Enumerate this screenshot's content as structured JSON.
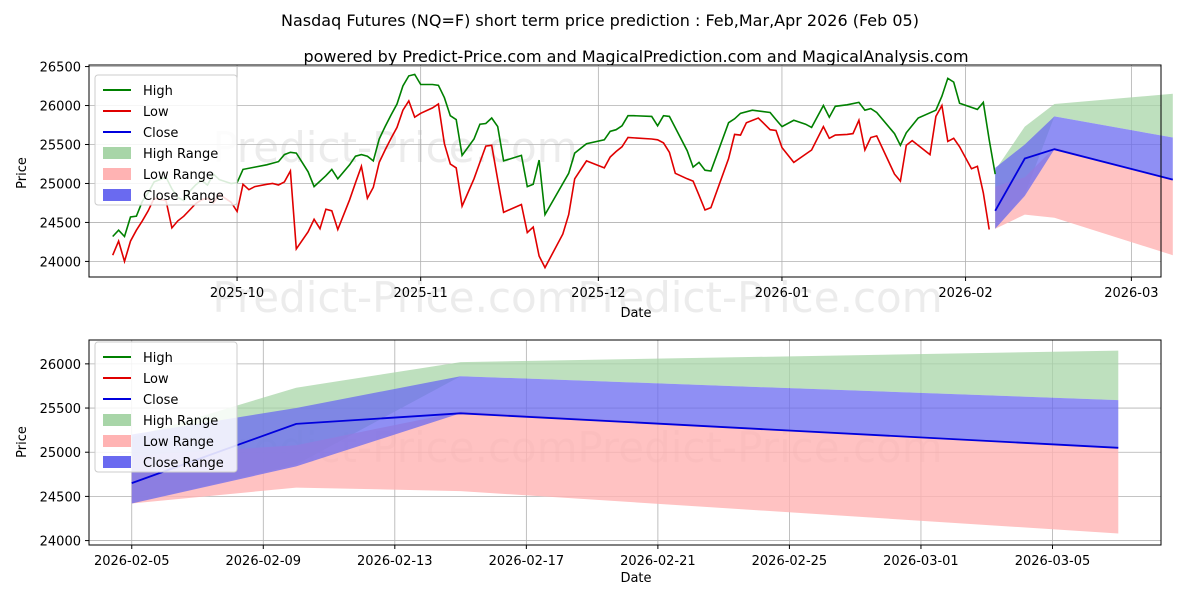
{
  "title": "Nasdaq Futures (NQ=F) short term price prediction : Feb,Mar,Apr 2026 (Feb 05)",
  "subtitle": "powered by Predict-Price.com and MagicalPrediction.com and MagicalAnalysis.com",
  "watermark": "Predict-Price.com",
  "colors": {
    "high": "#008000",
    "low": "#e00000",
    "close": "#0000dd",
    "high_range": "#a8d5a8",
    "low_range": "#ffb3b3",
    "close_range": "#6a6af0"
  },
  "chart_data": [
    {
      "type": "line",
      "name": "history",
      "xlabel": "Date",
      "ylabel": "Price",
      "grid": true,
      "legend_position": "top-left",
      "legend": [
        "High",
        "Low",
        "Close",
        "High Range",
        "Low Range",
        "Close Range"
      ],
      "x_day_range": [
        -25,
        156
      ],
      "ylim": [
        23800,
        26520
      ],
      "x_ticks": [
        {
          "day": 0,
          "label": "2025-10"
        },
        {
          "day": 31,
          "label": "2025-11"
        },
        {
          "day": 61,
          "label": "2025-12"
        },
        {
          "day": 92,
          "label": "2026-01"
        },
        {
          "day": 123,
          "label": "2026-02"
        },
        {
          "day": 151,
          "label": "2026-03"
        }
      ],
      "y_ticks": [
        24000,
        24500,
        25000,
        25500,
        26000,
        26500
      ],
      "series": [
        {
          "name": "High",
          "points": [
            [
              -21,
              24320
            ],
            [
              -20,
              24400
            ],
            [
              -19,
              24320
            ],
            [
              -18,
              24570
            ],
            [
              -17,
              24580
            ],
            [
              -16,
              24770
            ],
            [
              -15,
              24880
            ],
            [
              -14,
              25020
            ],
            [
              -12,
              25080
            ],
            [
              -11,
              24930
            ],
            [
              -10,
              24820
            ],
            [
              -9,
              24780
            ],
            [
              -8,
              24900
            ],
            [
              -7,
              24980
            ],
            [
              -6,
              25040
            ],
            [
              -5,
              24980
            ],
            [
              -4,
              25120
            ],
            [
              -3,
              25050
            ],
            [
              -1,
              25000
            ],
            [
              0,
              25010
            ],
            [
              1,
              25180
            ],
            [
              3,
              25210
            ],
            [
              5,
              25240
            ],
            [
              7,
              25280
            ],
            [
              8,
              25370
            ],
            [
              9,
              25400
            ],
            [
              10,
              25390
            ],
            [
              12,
              25150
            ],
            [
              13,
              24960
            ],
            [
              15,
              25100
            ],
            [
              16,
              25180
            ],
            [
              17,
              25060
            ],
            [
              19,
              25240
            ],
            [
              20,
              25350
            ],
            [
              21,
              25370
            ],
            [
              22,
              25350
            ],
            [
              23,
              25290
            ],
            [
              24,
              25570
            ],
            [
              25,
              25730
            ],
            [
              26,
              25880
            ],
            [
              27,
              26020
            ],
            [
              28,
              26250
            ],
            [
              29,
              26380
            ],
            [
              30,
              26400
            ],
            [
              31,
              26270
            ],
            [
              33,
              26270
            ],
            [
              34,
              26260
            ],
            [
              35,
              26100
            ],
            [
              36,
              25870
            ],
            [
              37,
              25820
            ],
            [
              38,
              25360
            ],
            [
              40,
              25570
            ],
            [
              41,
              25760
            ],
            [
              42,
              25770
            ],
            [
              43,
              25840
            ],
            [
              44,
              25730
            ],
            [
              45,
              25290
            ],
            [
              48,
              25360
            ],
            [
              49,
              24960
            ],
            [
              50,
              24990
            ],
            [
              51,
              25300
            ],
            [
              52,
              24600
            ],
            [
              56,
              25130
            ],
            [
              57,
              25390
            ],
            [
              59,
              25510
            ],
            [
              62,
              25560
            ],
            [
              63,
              25670
            ],
            [
              64,
              25690
            ],
            [
              65,
              25740
            ],
            [
              66,
              25870
            ],
            [
              67,
              25870
            ],
            [
              70,
              25860
            ],
            [
              71,
              25740
            ],
            [
              72,
              25870
            ],
            [
              73,
              25860
            ],
            [
              76,
              25420
            ],
            [
              77,
              25210
            ],
            [
              78,
              25270
            ],
            [
              79,
              25170
            ],
            [
              80,
              25160
            ],
            [
              83,
              25780
            ],
            [
              84,
              25830
            ],
            [
              85,
              25900
            ],
            [
              87,
              25940
            ],
            [
              90,
              25910
            ],
            [
              91,
              25820
            ],
            [
              92,
              25730
            ],
            [
              94,
              25810
            ],
            [
              96,
              25760
            ],
            [
              97,
              25720
            ],
            [
              99,
              26000
            ],
            [
              100,
              25850
            ],
            [
              101,
              25990
            ],
            [
              103,
              26010
            ],
            [
              105,
              26040
            ],
            [
              106,
              25940
            ],
            [
              107,
              25960
            ],
            [
              108,
              25910
            ],
            [
              111,
              25640
            ],
            [
              112,
              25490
            ],
            [
              113,
              25650
            ],
            [
              115,
              25840
            ],
            [
              118,
              25940
            ],
            [
              119,
              26120
            ],
            [
              120,
              26350
            ],
            [
              121,
              26300
            ],
            [
              122,
              26030
            ],
            [
              125,
              25950
            ],
            [
              126,
              26040
            ],
            [
              127,
              25560
            ],
            [
              128,
              25120
            ]
          ]
        },
        {
          "name": "Low",
          "points": [
            [
              -21,
              24080
            ],
            [
              -20,
              24260
            ],
            [
              -19,
              24000
            ],
            [
              -18,
              24260
            ],
            [
              -17,
              24400
            ],
            [
              -16,
              24520
            ],
            [
              -15,
              24650
            ],
            [
              -14,
              24810
            ],
            [
              -12,
              24780
            ],
            [
              -11,
              24430
            ],
            [
              -10,
              24520
            ],
            [
              -9,
              24580
            ],
            [
              -8,
              24660
            ],
            [
              -7,
              24740
            ],
            [
              -6,
              24790
            ],
            [
              -5,
              24810
            ],
            [
              -4,
              24750
            ],
            [
              -3,
              24860
            ],
            [
              -1,
              24760
            ],
            [
              0,
              24640
            ],
            [
              1,
              24990
            ],
            [
              2,
              24920
            ],
            [
              3,
              24960
            ],
            [
              5,
              24990
            ],
            [
              6,
              25000
            ],
            [
              7,
              24980
            ],
            [
              8,
              25020
            ],
            [
              9,
              25160
            ],
            [
              10,
              24160
            ],
            [
              12,
              24380
            ],
            [
              13,
              24540
            ],
            [
              14,
              24420
            ],
            [
              15,
              24670
            ],
            [
              16,
              24650
            ],
            [
              17,
              24410
            ],
            [
              19,
              24790
            ],
            [
              20,
              25010
            ],
            [
              21,
              25220
            ],
            [
              22,
              24810
            ],
            [
              23,
              24950
            ],
            [
              24,
              25270
            ],
            [
              25,
              25430
            ],
            [
              26,
              25580
            ],
            [
              27,
              25720
            ],
            [
              28,
              25940
            ],
            [
              29,
              26060
            ],
            [
              30,
              25850
            ],
            [
              31,
              25900
            ],
            [
              33,
              25970
            ],
            [
              34,
              26020
            ],
            [
              35,
              25510
            ],
            [
              36,
              25250
            ],
            [
              37,
              25200
            ],
            [
              38,
              24710
            ],
            [
              40,
              25060
            ],
            [
              41,
              25270
            ],
            [
              42,
              25480
            ],
            [
              43,
              25490
            ],
            [
              44,
              25050
            ],
            [
              45,
              24630
            ],
            [
              48,
              24730
            ],
            [
              49,
              24370
            ],
            [
              50,
              24440
            ],
            [
              51,
              24070
            ],
            [
              52,
              23920
            ],
            [
              55,
              24350
            ],
            [
              56,
              24600
            ],
            [
              57,
              25060
            ],
            [
              59,
              25290
            ],
            [
              62,
              25200
            ],
            [
              63,
              25340
            ],
            [
              64,
              25410
            ],
            [
              65,
              25470
            ],
            [
              66,
              25590
            ],
            [
              70,
              25570
            ],
            [
              71,
              25560
            ],
            [
              72,
              25520
            ],
            [
              73,
              25400
            ],
            [
              74,
              25130
            ],
            [
              76,
              25060
            ],
            [
              77,
              25030
            ],
            [
              78,
              24850
            ],
            [
              79,
              24660
            ],
            [
              80,
              24690
            ],
            [
              83,
              25320
            ],
            [
              84,
              25630
            ],
            [
              85,
              25620
            ],
            [
              86,
              25780
            ],
            [
              88,
              25840
            ],
            [
              90,
              25690
            ],
            [
              91,
              25680
            ],
            [
              92,
              25460
            ],
            [
              94,
              25270
            ],
            [
              97,
              25430
            ],
            [
              99,
              25730
            ],
            [
              100,
              25580
            ],
            [
              101,
              25620
            ],
            [
              103,
              25630
            ],
            [
              104,
              25640
            ],
            [
              105,
              25810
            ],
            [
              106,
              25430
            ],
            [
              107,
              25590
            ],
            [
              108,
              25610
            ],
            [
              111,
              25120
            ],
            [
              112,
              25030
            ],
            [
              113,
              25490
            ],
            [
              114,
              25550
            ],
            [
              117,
              25370
            ],
            [
              118,
              25860
            ],
            [
              119,
              26000
            ],
            [
              120,
              25540
            ],
            [
              121,
              25580
            ],
            [
              122,
              25470
            ],
            [
              124,
              25190
            ],
            [
              125,
              25220
            ],
            [
              126,
              24880
            ],
            [
              127,
              24410
            ]
          ]
        }
      ]
    },
    {
      "type": "line",
      "name": "forecast",
      "xlabel": "Date",
      "ylabel": "Price",
      "grid": true,
      "legend_position": "top-left",
      "legend": [
        "High",
        "Low",
        "Close",
        "High Range",
        "Low Range",
        "Close Range"
      ],
      "x_day_range": [
        -1.3,
        31.3
      ],
      "ylim": [
        23950,
        26270
      ],
      "x_ticks": [
        {
          "day": 0,
          "label": "2026-02-05"
        },
        {
          "day": 4,
          "label": "2026-02-09"
        },
        {
          "day": 8,
          "label": "2026-02-13"
        },
        {
          "day": 12,
          "label": "2026-02-17"
        },
        {
          "day": 16,
          "label": "2026-02-21"
        },
        {
          "day": 20,
          "label": "2026-02-25"
        },
        {
          "day": 24,
          "label": "2026-03-01"
        },
        {
          "day": 28,
          "label": "2026-03-05"
        }
      ],
      "y_ticks": [
        24000,
        24500,
        25000,
        25500,
        26000
      ],
      "close": [
        [
          0,
          24650
        ],
        [
          5,
          25320
        ],
        [
          10,
          25440
        ],
        [
          30,
          25050
        ]
      ],
      "high_range": [
        [
          0,
          25170,
          24420
        ],
        [
          5,
          25730,
          24860
        ],
        [
          10,
          26020,
          25860
        ],
        [
          30,
          26150,
          25590
        ]
      ],
      "low_range": [
        [
          0,
          24960,
          24420
        ],
        [
          5,
          25080,
          24600
        ],
        [
          10,
          25460,
          24560
        ],
        [
          30,
          25050,
          24080
        ]
      ],
      "close_range": [
        [
          0,
          25200,
          24420
        ],
        [
          5,
          25500,
          24840
        ],
        [
          10,
          25860,
          25440
        ],
        [
          30,
          25590,
          25050
        ]
      ]
    }
  ]
}
